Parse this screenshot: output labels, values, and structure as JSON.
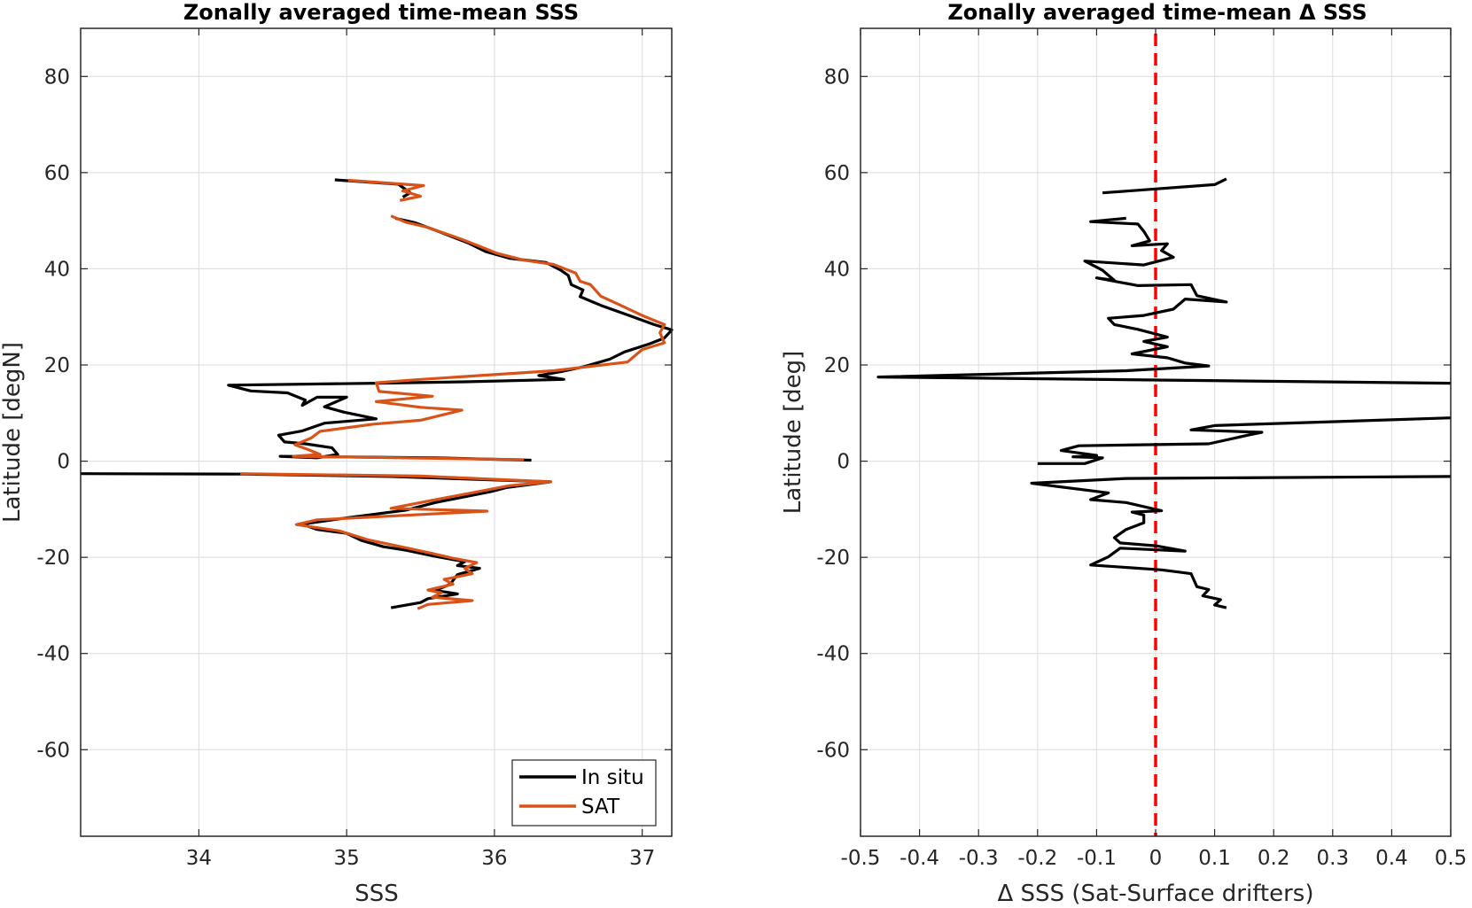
{
  "chart_data": [
    {
      "type": "line",
      "title": "Zonally averaged time-mean SSS",
      "xlabel": "SSS",
      "ylabel": "Latitude [degN]",
      "xlim": [
        33.2,
        37.2
      ],
      "ylim": [
        -78,
        90
      ],
      "xticks": [
        34,
        35,
        36,
        37
      ],
      "yticks": [
        -60,
        -40,
        -20,
        0,
        20,
        40,
        60,
        80
      ],
      "grid": true,
      "legend": {
        "placement": "bottom-right",
        "entries": [
          "In situ",
          "SAT"
        ]
      },
      "series": [
        {
          "name": "In situ",
          "color": "#000000",
          "points": [
            [
              35.38,
              54.9
            ],
            [
              35.43,
              55.8
            ],
            [
              35.35,
              57.6
            ],
            [
              34.92,
              58.5
            ],
            [
              null,
              null
            ],
            [
              35.33,
              50.5
            ],
            [
              35.46,
              49.6
            ],
            [
              35.62,
              47.8
            ],
            [
              35.82,
              45.4
            ],
            [
              35.94,
              43.6
            ],
            [
              36.1,
              42.2
            ],
            [
              36.35,
              41.3
            ],
            [
              36.45,
              39.7
            ],
            [
              36.5,
              38.6
            ],
            [
              36.52,
              36.7
            ],
            [
              36.6,
              35.6
            ],
            [
              36.58,
              34.2
            ],
            [
              36.72,
              32.4
            ],
            [
              36.92,
              30.2
            ],
            [
              37.08,
              28.4
            ],
            [
              37.2,
              27.3
            ],
            [
              37.15,
              25.6
            ],
            [
              37.05,
              24.4
            ],
            [
              36.88,
              22.7
            ],
            [
              36.78,
              21.2
            ],
            [
              36.6,
              19.6
            ],
            [
              36.45,
              18.6
            ],
            [
              36.3,
              17.8
            ],
            [
              36.47,
              17.0
            ],
            [
              35.8,
              16.5
            ],
            [
              35.2,
              16.2
            ],
            [
              34.2,
              15.8
            ],
            [
              34.35,
              14.6
            ],
            [
              34.6,
              14.2
            ],
            [
              34.72,
              12.7
            ],
            [
              34.7,
              11.6
            ],
            [
              34.8,
              13.3
            ],
            [
              35.0,
              13.3
            ],
            [
              34.85,
              11.3
            ],
            [
              34.98,
              10.2
            ],
            [
              35.2,
              8.8
            ],
            [
              34.85,
              7.9
            ],
            [
              34.7,
              6.3
            ],
            [
              34.54,
              5.4
            ],
            [
              34.58,
              4.0
            ],
            [
              34.72,
              3.6
            ],
            [
              34.9,
              2.8
            ],
            [
              34.94,
              1.4
            ],
            [
              34.8,
              0.7
            ],
            [
              34.55,
              1.0
            ],
            [
              35.6,
              0.7
            ],
            [
              36.25,
              0.2
            ],
            [
              null,
              null
            ],
            [
              33.2,
              -2.6
            ],
            [
              34.3,
              -2.7
            ],
            [
              35.3,
              -3.2
            ],
            [
              36.38,
              -4.3
            ],
            [
              36.08,
              -5.5
            ],
            [
              35.98,
              -6.3
            ],
            [
              35.6,
              -8.6
            ],
            [
              35.4,
              -10.2
            ],
            [
              35.0,
              -11.8
            ],
            [
              34.7,
              -13.1
            ],
            [
              34.8,
              -14.2
            ],
            [
              35.0,
              -15.0
            ],
            [
              35.1,
              -16.5
            ],
            [
              35.25,
              -17.8
            ],
            [
              35.4,
              -18.5
            ],
            [
              35.6,
              -19.8
            ],
            [
              35.8,
              -20.9
            ],
            [
              35.75,
              -21.7
            ],
            [
              35.9,
              -22.3
            ],
            [
              35.75,
              -23.6
            ],
            [
              35.7,
              -25.6
            ],
            [
              35.6,
              -26.9
            ],
            [
              35.75,
              -27.6
            ],
            [
              35.55,
              -28.6
            ],
            [
              35.5,
              -29.4
            ],
            [
              35.3,
              -30.5
            ]
          ]
        },
        {
          "name": "SAT",
          "color": "#D95319",
          "points": [
            [
              35.36,
              54.2
            ],
            [
              35.5,
              55.1
            ],
            [
              35.38,
              56.2
            ],
            [
              35.52,
              57.3
            ],
            [
              35.01,
              58.4
            ],
            [
              null,
              null
            ],
            [
              35.3,
              51.0
            ],
            [
              35.4,
              49.7
            ],
            [
              35.55,
              48.6
            ],
            [
              35.78,
              46.1
            ],
            [
              35.88,
              44.9
            ],
            [
              36.02,
              43.2
            ],
            [
              36.2,
              41.8
            ],
            [
              36.4,
              40.9
            ],
            [
              36.55,
              39.1
            ],
            [
              36.58,
              37.4
            ],
            [
              36.65,
              36.7
            ],
            [
              36.72,
              34.3
            ],
            [
              36.84,
              32.6
            ],
            [
              37.0,
              30.3
            ],
            [
              37.15,
              28.4
            ],
            [
              37.12,
              26.7
            ],
            [
              37.15,
              24.6
            ],
            [
              37.0,
              23.2
            ],
            [
              36.9,
              20.6
            ],
            [
              36.4,
              18.8
            ],
            [
              35.5,
              17.0
            ],
            [
              35.2,
              16.3
            ],
            [
              35.22,
              14.5
            ],
            [
              35.58,
              13.5
            ],
            [
              35.2,
              12.4
            ],
            [
              35.5,
              11.2
            ],
            [
              35.78,
              10.6
            ],
            [
              35.5,
              8.5
            ],
            [
              35.18,
              7.7
            ],
            [
              34.82,
              6.2
            ],
            [
              34.76,
              4.8
            ],
            [
              34.65,
              3.4
            ],
            [
              34.74,
              2.4
            ],
            [
              34.82,
              1.4
            ],
            [
              34.64,
              1.0
            ],
            [
              36.2,
              0.3
            ],
            [
              null,
              null
            ],
            [
              34.28,
              -2.6
            ],
            [
              35.5,
              -3.1
            ],
            [
              36.38,
              -4.3
            ],
            [
              36.1,
              -5.1
            ],
            [
              35.5,
              -8.6
            ],
            [
              35.3,
              -9.8
            ],
            [
              35.95,
              -10.4
            ],
            [
              34.8,
              -12.2
            ],
            [
              34.66,
              -13.2
            ],
            [
              34.95,
              -14.5
            ],
            [
              35.15,
              -16.4
            ],
            [
              35.4,
              -18.0
            ],
            [
              35.58,
              -19.2
            ],
            [
              35.72,
              -20.2
            ],
            [
              35.88,
              -21.1
            ],
            [
              35.8,
              -22.3
            ],
            [
              35.85,
              -23.4
            ],
            [
              35.66,
              -24.6
            ],
            [
              35.72,
              -25.6
            ],
            [
              35.55,
              -26.8
            ],
            [
              35.64,
              -27.4
            ],
            [
              35.58,
              -28.3
            ],
            [
              35.85,
              -29.0
            ],
            [
              35.55,
              -29.8
            ],
            [
              35.48,
              -30.7
            ]
          ]
        }
      ]
    },
    {
      "type": "line",
      "title": "Zonally averaged time-mean Δ SSS",
      "xlabel": "Δ SSS (Sat-Surface drifters)",
      "ylabel": "Latitude [deg]",
      "xlim": [
        -0.5,
        0.5
      ],
      "ylim": [
        -78,
        90
      ],
      "xticks": [
        -0.5,
        -0.4,
        -0.3,
        -0.2,
        -0.1,
        0,
        0.1,
        0.2,
        0.3,
        0.4,
        0.5
      ],
      "xticklabels": [
        "-0.5",
        "-0.4",
        "-0.3",
        "-0.2",
        "-0.1",
        "0",
        "0.1",
        "0.2",
        "0.3",
        "0.4",
        "0.5"
      ],
      "yticks": [
        -60,
        -40,
        -20,
        0,
        20,
        40,
        60,
        80
      ],
      "grid": true,
      "reference_line": {
        "x": 0,
        "style": "dashed",
        "color": "#FF0000"
      },
      "series": [
        {
          "color": "#000000",
          "points": [
            [
              0.12,
              58.7
            ],
            [
              0.1,
              57.5
            ],
            [
              -0.09,
              55.8
            ],
            [
              null,
              null
            ],
            [
              -0.05,
              50.5
            ],
            [
              -0.11,
              49.8
            ],
            [
              -0.03,
              49.3
            ],
            [
              -0.02,
              47.8
            ],
            [
              -0.01,
              45.8
            ],
            [
              -0.04,
              44.8
            ],
            [
              0.02,
              45.2
            ],
            [
              0.01,
              43.8
            ],
            [
              0.03,
              42.4
            ],
            [
              -0.02,
              40.8
            ],
            [
              -0.12,
              41.6
            ],
            [
              -0.09,
              39.7
            ],
            [
              -0.07,
              37.6
            ],
            [
              -0.1,
              38.1
            ],
            [
              -0.03,
              36.5
            ],
            [
              0.06,
              36.7
            ],
            [
              0.07,
              34.4
            ],
            [
              0.12,
              33.1
            ],
            [
              0.05,
              33.7
            ],
            [
              0.03,
              31.6
            ],
            [
              -0.02,
              30.3
            ],
            [
              -0.08,
              29.7
            ],
            [
              -0.07,
              28.4
            ],
            [
              -0.03,
              27.4
            ],
            [
              0.02,
              25.8
            ],
            [
              -0.02,
              24.9
            ],
            [
              0.02,
              23.8
            ],
            [
              -0.04,
              22.3
            ],
            [
              0.02,
              21.5
            ],
            [
              0.05,
              20.4
            ],
            [
              0.09,
              19.8
            ],
            [
              -0.05,
              18.8
            ],
            [
              -0.47,
              17.5
            ],
            [
              0.5,
              16.2
            ],
            [
              null,
              null
            ],
            [
              0.5,
              9.0
            ],
            [
              0.1,
              7.4
            ],
            [
              0.06,
              6.5
            ],
            [
              0.18,
              6.0
            ],
            [
              0.16,
              5.5
            ],
            [
              0.09,
              3.6
            ],
            [
              -0.13,
              3.2
            ],
            [
              -0.16,
              2.2
            ],
            [
              -0.1,
              1.2
            ],
            [
              -0.14,
              0.9
            ],
            [
              -0.09,
              0.7
            ],
            [
              -0.12,
              -0.5
            ],
            [
              -0.2,
              -0.5
            ],
            [
              null,
              null
            ],
            [
              0.5,
              -3.2
            ],
            [
              -0.05,
              -3.6
            ],
            [
              -0.21,
              -4.6
            ],
            [
              -0.08,
              -6.6
            ],
            [
              -0.11,
              -8.0
            ],
            [
              -0.05,
              -8.6
            ],
            [
              0.01,
              -10.3
            ],
            [
              -0.04,
              -10.6
            ],
            [
              -0.02,
              -11.2
            ],
            [
              -0.02,
              -12.8
            ],
            [
              -0.05,
              -14.2
            ],
            [
              -0.07,
              -15.9
            ],
            [
              -0.06,
              -17.0
            ],
            [
              0.0,
              -17.6
            ],
            [
              0.05,
              -18.7
            ],
            [
              -0.06,
              -18.1
            ],
            [
              -0.08,
              -19.9
            ],
            [
              -0.11,
              -21.6
            ],
            [
              0.01,
              -22.6
            ],
            [
              0.06,
              -23.4
            ],
            [
              0.07,
              -26.1
            ],
            [
              0.09,
              -26.7
            ],
            [
              0.08,
              -28.0
            ],
            [
              0.11,
              -28.8
            ],
            [
              0.1,
              -29.9
            ],
            [
              0.12,
              -30.5
            ]
          ]
        }
      ]
    }
  ]
}
